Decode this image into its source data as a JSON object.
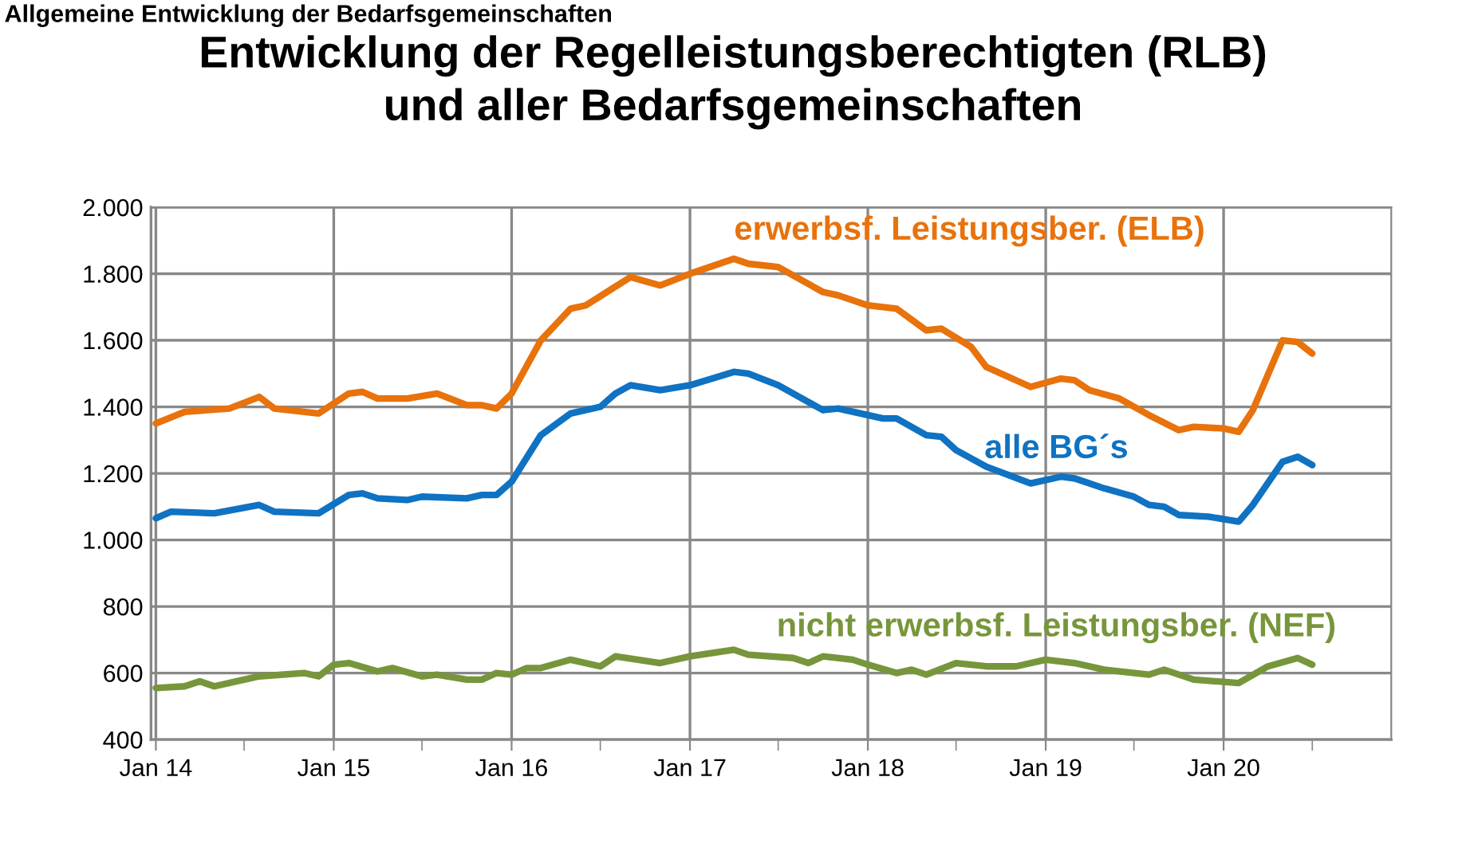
{
  "chart_data": {
    "type": "line",
    "title": "Entwicklung der Regelleistungsberechtigten (RLB)\nund aller Bedarfsgemeinschaften",
    "annotations": [
      "Allgemeine Entwicklung der Bedarfsgemeinschaften"
    ],
    "series": [
      {
        "name": "erwerbsf. Leistungsber. (ELB)",
        "color": "#e8720c",
        "x": [
          "2014-01",
          "2014-03",
          "2014-06",
          "2014-08",
          "2014-09",
          "2014-12",
          "2015-02",
          "2015-03",
          "2015-04",
          "2015-06",
          "2015-08",
          "2015-10",
          "2015-11",
          "2015-12",
          "2016-01",
          "2016-03",
          "2016-05",
          "2016-06",
          "2016-09",
          "2016-11",
          "2017-01",
          "2017-04",
          "2017-05",
          "2017-07",
          "2017-10",
          "2017-11",
          "2018-01",
          "2018-03",
          "2018-05",
          "2018-06",
          "2018-08",
          "2018-09",
          "2018-12",
          "2019-02",
          "2019-03",
          "2019-04",
          "2019-06",
          "2019-08",
          "2019-10",
          "2019-11",
          "2020-01",
          "2020-02",
          "2020-03",
          "2020-05",
          "2020-06",
          "2020-07"
        ],
        "values": [
          1350,
          1385,
          1395,
          1430,
          1395,
          1380,
          1440,
          1445,
          1425,
          1425,
          1440,
          1405,
          1405,
          1395,
          1440,
          1600,
          1695,
          1705,
          1790,
          1765,
          1800,
          1845,
          1830,
          1820,
          1745,
          1735,
          1705,
          1695,
          1630,
          1635,
          1580,
          1520,
          1460,
          1485,
          1480,
          1450,
          1425,
          1375,
          1330,
          1340,
          1335,
          1325,
          1390,
          1600,
          1595,
          1560
        ]
      },
      {
        "name": "alle BG´s",
        "color": "#0f72c2",
        "x": [
          "2014-01",
          "2014-02",
          "2014-05",
          "2014-08",
          "2014-09",
          "2014-12",
          "2015-02",
          "2015-03",
          "2015-04",
          "2015-06",
          "2015-07",
          "2015-10",
          "2015-11",
          "2015-12",
          "2016-01",
          "2016-03",
          "2016-05",
          "2016-07",
          "2016-08",
          "2016-09",
          "2016-11",
          "2017-01",
          "2017-04",
          "2017-05",
          "2017-07",
          "2017-10",
          "2017-11",
          "2018-02",
          "2018-03",
          "2018-05",
          "2018-06",
          "2018-07",
          "2018-09",
          "2018-12",
          "2019-02",
          "2019-03",
          "2019-05",
          "2019-07",
          "2019-08",
          "2019-09",
          "2019-10",
          "2019-12",
          "2020-02",
          "2020-03",
          "2020-05",
          "2020-06",
          "2020-07"
        ],
        "values": [
          1065,
          1085,
          1080,
          1105,
          1085,
          1080,
          1135,
          1140,
          1125,
          1120,
          1130,
          1125,
          1135,
          1135,
          1175,
          1315,
          1380,
          1400,
          1440,
          1465,
          1450,
          1465,
          1505,
          1500,
          1465,
          1390,
          1395,
          1365,
          1365,
          1315,
          1310,
          1270,
          1220,
          1170,
          1190,
          1185,
          1155,
          1130,
          1105,
          1100,
          1075,
          1070,
          1055,
          1105,
          1235,
          1250,
          1225
        ]
      },
      {
        "name": "nicht erwerbsf. Leistungsber. (NEF)",
        "color": "#77963b",
        "x": [
          "2014-01",
          "2014-03",
          "2014-04",
          "2014-05",
          "2014-07",
          "2014-08",
          "2014-11",
          "2014-12",
          "2015-01",
          "2015-02",
          "2015-04",
          "2015-05",
          "2015-07",
          "2015-08",
          "2015-10",
          "2015-11",
          "2015-12",
          "2016-01",
          "2016-02",
          "2016-03",
          "2016-05",
          "2016-07",
          "2016-08",
          "2016-11",
          "2017-01",
          "2017-04",
          "2017-05",
          "2017-08",
          "2017-09",
          "2017-10",
          "2017-12",
          "2018-01",
          "2018-03",
          "2018-04",
          "2018-05",
          "2018-07",
          "2018-09",
          "2018-11",
          "2019-01",
          "2019-03",
          "2019-05",
          "2019-08",
          "2019-09",
          "2019-11",
          "2020-02",
          "2020-04",
          "2020-06",
          "2020-07"
        ],
        "values": [
          555,
          560,
          575,
          560,
          580,
          590,
          600,
          590,
          625,
          630,
          605,
          615,
          590,
          595,
          580,
          580,
          600,
          595,
          615,
          615,
          640,
          620,
          650,
          630,
          650,
          670,
          655,
          645,
          630,
          650,
          640,
          625,
          600,
          610,
          595,
          630,
          620,
          620,
          640,
          630,
          610,
          595,
          610,
          580,
          570,
          620,
          645,
          625
        ]
      }
    ],
    "xlim": [
      "2013-12-22",
      "2020-12-10"
    ],
    "xticks": [
      {
        "value": "2014-01-01",
        "label": "Jan 14"
      },
      {
        "value": "2014-07-01",
        "label": null
      },
      {
        "value": "2015-01-01",
        "label": "Jan 15"
      },
      {
        "value": "2015-07-01",
        "label": null
      },
      {
        "value": "2016-01-01",
        "label": "Jan 16"
      },
      {
        "value": "2016-07-01",
        "label": null
      },
      {
        "value": "2017-01-01",
        "label": "Jan 17"
      },
      {
        "value": "2017-07-01",
        "label": null
      },
      {
        "value": "2018-01-01",
        "label": "Jan 18"
      },
      {
        "value": "2018-07-01",
        "label": null
      },
      {
        "value": "2019-01-01",
        "label": "Jan 19"
      },
      {
        "value": "2019-07-01",
        "label": null
      },
      {
        "value": "2020-01-01",
        "label": "Jan 20"
      },
      {
        "value": "2020-07-01",
        "label": null
      }
    ],
    "ylim": [
      400,
      2000
    ],
    "yticks": [
      400,
      600,
      800,
      {
        "value": 1000,
        "label": "1.000"
      },
      {
        "value": 1200,
        "label": "1.200"
      },
      {
        "value": 1400,
        "label": "1.400"
      },
      {
        "value": 1600,
        "label": "1.600"
      },
      {
        "value": 1800,
        "label": "1.800"
      },
      {
        "value": 2000,
        "label": "2.000"
      }
    ],
    "grid": true,
    "legend": false,
    "marker": "none",
    "line_style": "solid"
  }
}
